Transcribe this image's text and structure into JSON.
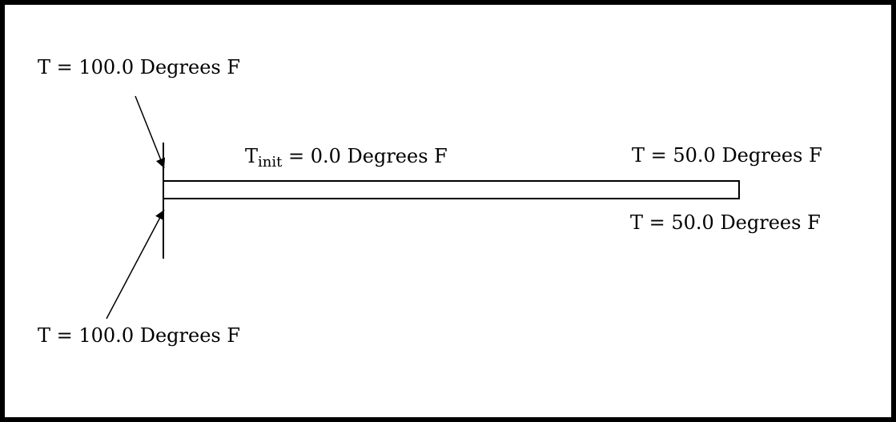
{
  "labels": {
    "left_top": "T = 100.0 Degrees F",
    "left_bottom": "T = 100.0 Degrees F",
    "init_symbol": "T",
    "init_subscript": "init",
    "init_rest": " = 0.0 Degrees F",
    "right_top": "T = 50.0 Degrees F",
    "right_bottom": "T = 50.0 Degrees F"
  },
  "colors": {
    "line": "#000000",
    "background": "#ffffff"
  }
}
